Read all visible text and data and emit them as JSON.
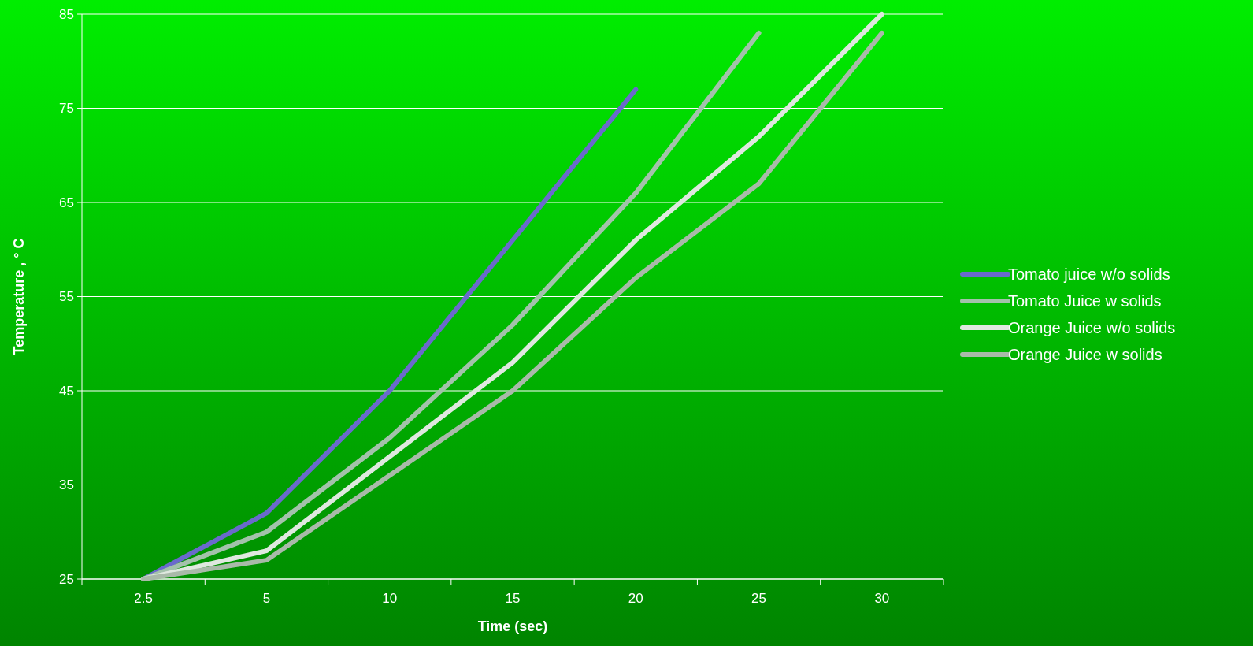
{
  "chart_data": {
    "type": "line",
    "xlabel": "Time (sec)",
    "ylabel": "Temperature , ° C",
    "categories": [
      "2.5",
      "5",
      "10",
      "15",
      "20",
      "25",
      "30"
    ],
    "ylim": [
      25,
      85
    ],
    "yticks": [
      25,
      35,
      45,
      55,
      65,
      75,
      85
    ],
    "grid": "y",
    "legend": "right",
    "line_style": "solid",
    "series": [
      {
        "name": "Tomato juice w/o solids",
        "color": "#6a6acc",
        "values": [
          25,
          32,
          45,
          61,
          77,
          null,
          null
        ]
      },
      {
        "name": "Tomato Juice w solids",
        "color": "#a3c2ab",
        "values": [
          25,
          30,
          40,
          52,
          66,
          83,
          null
        ]
      },
      {
        "name": "Orange Juice w/o solids",
        "color": "#dfe8df",
        "values": [
          25,
          28,
          38,
          48,
          61,
          72,
          85
        ]
      },
      {
        "name": "Orange Juice w solids",
        "color": "#a9baa9",
        "values": [
          25,
          27,
          36,
          45,
          57,
          67,
          83
        ]
      }
    ]
  }
}
